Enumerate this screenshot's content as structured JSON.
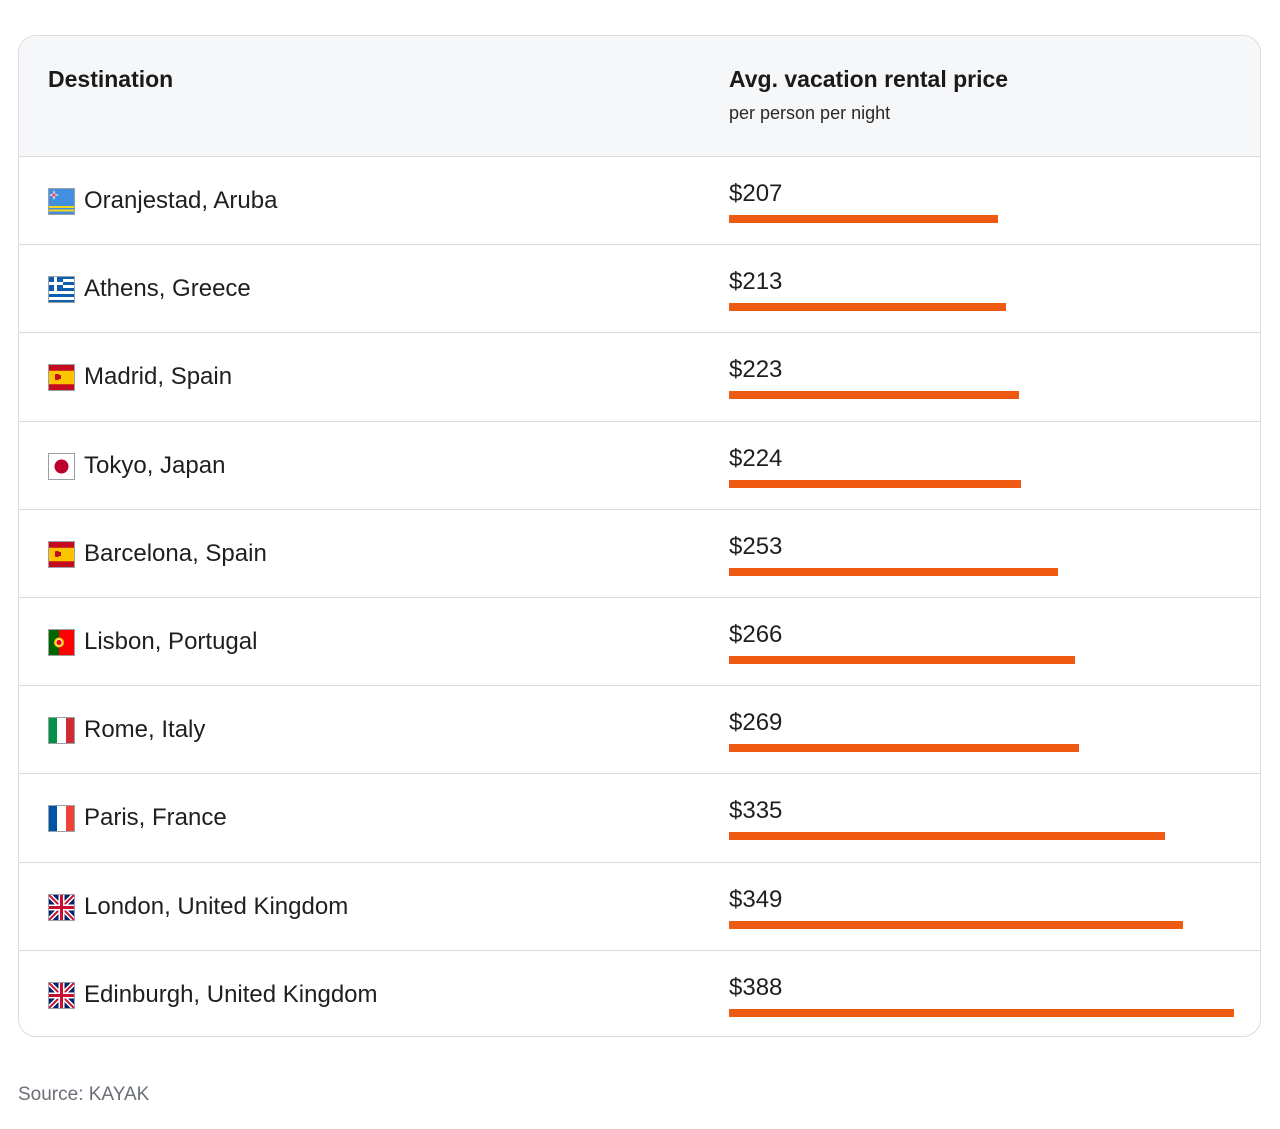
{
  "table": {
    "col_destination": "Destination",
    "col_price": "Avg. vacation rental price",
    "col_price_sub": "per person per night"
  },
  "chart_data": {
    "type": "bar",
    "orientation": "horizontal",
    "xlim": [
      0,
      388
    ],
    "categories": [
      "Oranjestad, Aruba",
      "Athens, Greece",
      "Madrid, Spain",
      "Tokyo, Japan",
      "Barcelona, Spain",
      "Lisbon, Portugal",
      "Rome, Italy",
      "Paris, France",
      "London, United Kingdom",
      "Edinburgh, United Kingdom"
    ],
    "values": [
      207,
      213,
      223,
      224,
      253,
      266,
      269,
      335,
      349,
      388
    ],
    "value_labels": [
      "$207",
      "$213",
      "$223",
      "$224",
      "$253",
      "$266",
      "$269",
      "$335",
      "$349",
      "$388"
    ],
    "flags": [
      "aruba-flag",
      "greece-flag",
      "spain-flag",
      "japan-flag",
      "spain-flag",
      "portugal-flag",
      "italy-flag",
      "france-flag",
      "uk-flag",
      "uk-flag"
    ],
    "bar_color": "#ee5a12"
  },
  "footer": {
    "source": "Source: KAYAK"
  }
}
